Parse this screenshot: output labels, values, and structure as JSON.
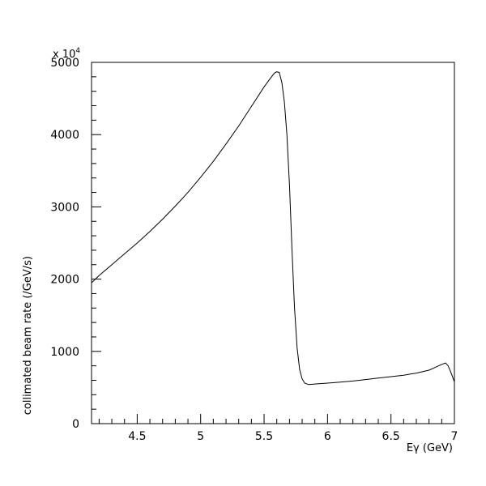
{
  "chart_data": {
    "type": "line",
    "title": "",
    "xlabel": "Eγ (GeV)",
    "ylabel": "collimated beam rate (/GeV/s)",
    "y_multiplier": {
      "base": "x 10",
      "exponent": "4"
    },
    "xlim": [
      4.14,
      7.0
    ],
    "ylim": [
      0,
      5000
    ],
    "x_ticks": [
      4.5,
      5,
      5.5,
      6,
      6.5,
      7
    ],
    "x_tick_labels": [
      "4.5",
      "5",
      "5.5",
      "6",
      "6.5",
      "7"
    ],
    "y_ticks": [
      0,
      1000,
      2000,
      3000,
      4000,
      5000
    ],
    "y_tick_labels": [
      "0",
      "1000",
      "2000",
      "3000",
      "4000",
      "5000"
    ],
    "grid": false,
    "legend": "none",
    "line_color": "#000000",
    "series": [
      {
        "x": [
          4.14,
          4.2,
          4.3,
          4.4,
          4.5,
          4.6,
          4.7,
          4.8,
          4.9,
          5.0,
          5.1,
          5.2,
          5.3,
          5.4,
          5.5,
          5.55,
          5.58,
          5.6,
          5.62,
          5.64,
          5.66,
          5.68,
          5.7,
          5.72,
          5.74,
          5.76,
          5.78,
          5.8,
          5.82,
          5.85,
          5.88,
          5.92,
          6.0,
          6.1,
          6.2,
          6.3,
          6.4,
          6.5,
          6.6,
          6.7,
          6.8,
          6.85,
          6.9,
          6.93,
          6.95,
          6.97,
          7.0
        ],
        "y": [
          1950,
          2050,
          2200,
          2350,
          2500,
          2660,
          2830,
          3010,
          3200,
          3410,
          3630,
          3870,
          4120,
          4390,
          4660,
          4780,
          4850,
          4870,
          4860,
          4720,
          4450,
          4000,
          3300,
          2400,
          1600,
          1050,
          750,
          620,
          560,
          540,
          545,
          550,
          560,
          575,
          590,
          610,
          630,
          650,
          670,
          700,
          740,
          780,
          820,
          840,
          800,
          720,
          580
        ]
      }
    ]
  }
}
